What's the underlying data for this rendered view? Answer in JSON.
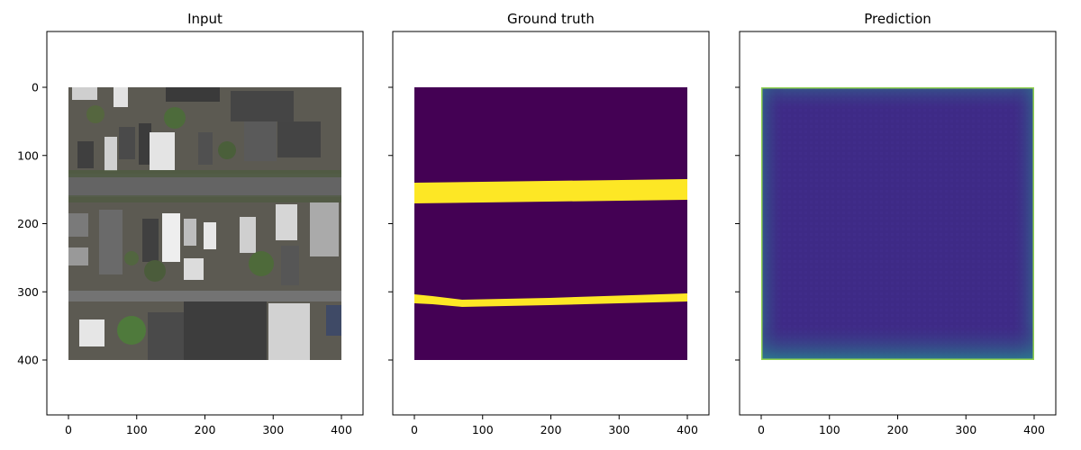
{
  "chart_data": [
    {
      "type": "heatmap",
      "title": "Input",
      "content": "aerial-photo",
      "image_extent": [
        0,
        400,
        0,
        400
      ],
      "xlim": [
        -33,
        433
      ],
      "ylim": [
        480,
        -80
      ],
      "xticks": [
        0,
        100,
        200,
        300,
        400
      ],
      "yticks": [
        0,
        100,
        200,
        300,
        400
      ],
      "show_ytick_labels": true,
      "colors": {
        "roof_dark": "#4a4a4a",
        "roof_light": "#d8d8d8",
        "tree": "#4a5a3a",
        "road": "#5e5e5e"
      }
    },
    {
      "type": "heatmap",
      "title": "Ground truth",
      "content": "road-mask",
      "image_extent": [
        0,
        400,
        0,
        400
      ],
      "xlim": [
        -33,
        433
      ],
      "ylim": [
        480,
        -80
      ],
      "xticks": [
        0,
        100,
        200,
        300,
        400
      ],
      "yticks": [
        0,
        100,
        200,
        300,
        400
      ],
      "show_ytick_labels": false,
      "colormap": "viridis",
      "colors": {
        "low": "#440154",
        "high": "#fde725"
      },
      "roads": [
        {
          "left_top": 140,
          "left_bottom": 170,
          "right_top": 135,
          "right_bottom": 165
        },
        {
          "left_top": 305,
          "mid_x": 70,
          "mid_top": 313,
          "mid_bottom": 322,
          "left_bottom": 318,
          "right_top": 303,
          "right_bottom": 315
        }
      ]
    },
    {
      "type": "heatmap",
      "title": "Prediction",
      "content": "prediction-map",
      "image_extent": [
        0,
        400,
        0,
        400
      ],
      "xlim": [
        -33,
        433
      ],
      "ylim": [
        480,
        -80
      ],
      "xticks": [
        0,
        100,
        200,
        300,
        400
      ],
      "yticks": [
        0,
        100,
        200,
        300,
        400
      ],
      "show_ytick_labels": false,
      "colormap": "viridis",
      "colors": {
        "fill": "#3e2a86",
        "edge": "#2a7e8e",
        "rim": "#8fd14f"
      }
    }
  ]
}
